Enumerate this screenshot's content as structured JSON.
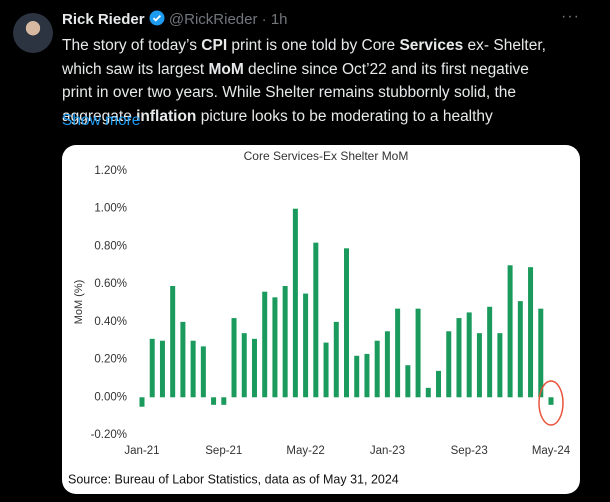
{
  "tweet": {
    "name": "Rick Rieder",
    "handle": "@RickRieder",
    "time": "· 1h",
    "body": [
      {
        "text": "The story of today’s ",
        "bold": false
      },
      {
        "text": "CPI",
        "bold": true
      },
      {
        "text": " print is one told by Core ",
        "bold": false
      },
      {
        "text": "Services",
        "bold": true
      },
      {
        "text": " ex- Shelter, which saw its largest ",
        "bold": false
      },
      {
        "text": "MoM",
        "bold": true
      },
      {
        "text": " decline since Oct’22 and its first negative print in over two years. While Shelter remains stubbornly solid, the aggregate ",
        "bold": false
      },
      {
        "text": "inflation",
        "bold": true
      },
      {
        "text": " picture looks to be moderating to a healthy",
        "bold": false
      }
    ],
    "show_more": "Show more"
  },
  "chart_data": {
    "type": "bar",
    "title": "Core Services-Ex Shelter MoM",
    "y_label": "MoM (%)",
    "source": "Source: Bureau of Labor Statistics, data as of May 31, 2024",
    "categories": [
      "Jan-21",
      null,
      null,
      null,
      null,
      null,
      null,
      null,
      "Sep-21",
      null,
      null,
      null,
      null,
      null,
      null,
      null,
      "May-22",
      null,
      null,
      null,
      null,
      null,
      null,
      null,
      "Jan-23",
      null,
      null,
      null,
      null,
      null,
      null,
      null,
      "Sep-23",
      null,
      null,
      null,
      null,
      null,
      null,
      null,
      "May-24"
    ],
    "values": [
      -0.05,
      0.31,
      0.3,
      0.59,
      0.4,
      0.3,
      0.27,
      -0.04,
      -0.04,
      0.42,
      0.34,
      0.31,
      0.56,
      0.53,
      0.59,
      1.0,
      0.55,
      0.82,
      0.29,
      0.4,
      0.79,
      0.22,
      0.23,
      0.3,
      0.35,
      0.47,
      0.17,
      0.47,
      0.05,
      0.14,
      0.35,
      0.42,
      0.45,
      0.34,
      0.48,
      0.34,
      0.7,
      0.51,
      0.69,
      0.47,
      -0.04
    ],
    "color": "#1a9a5c",
    "ylim": [
      -0.2,
      1.2
    ],
    "yticks": [
      {
        "value": -0.2,
        "label": "-0.20%"
      },
      {
        "value": 0,
        "label": "0.00%"
      },
      {
        "value": 0.2,
        "label": "0.20%"
      },
      {
        "value": 0.4,
        "label": "0.40%"
      },
      {
        "value": 0.6,
        "label": "0.60%"
      },
      {
        "value": 0.8,
        "label": "0.80%"
      },
      {
        "value": 1.0,
        "label": "1.00%"
      },
      {
        "value": 1.2,
        "label": "1.20%"
      }
    ],
    "grid": false
  }
}
